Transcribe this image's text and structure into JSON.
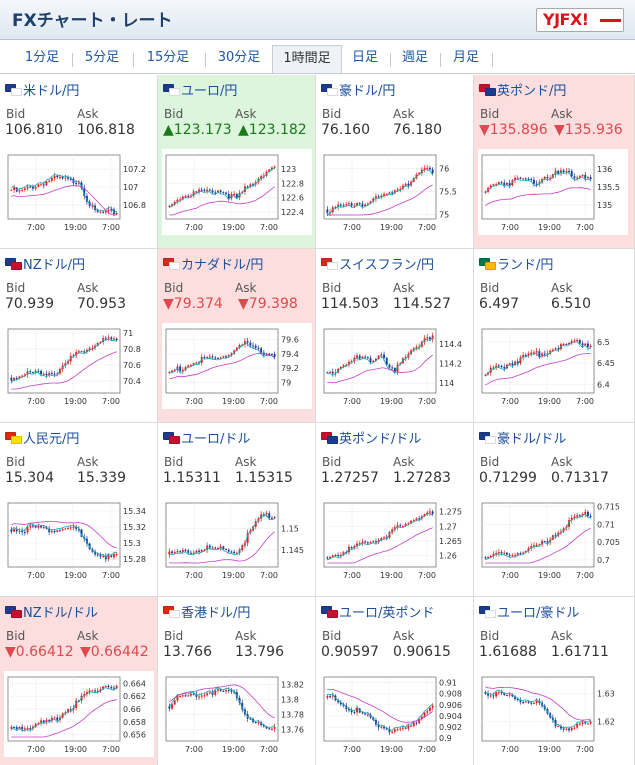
{
  "header": {
    "title": "FXチャート・レート",
    "logo_text": "YJFX!"
  },
  "tabs": [
    {
      "label": "1分足",
      "active": false
    },
    {
      "label": "5分足",
      "active": false
    },
    {
      "label": "15分足",
      "active": false
    },
    {
      "label": "30分足",
      "active": false
    },
    {
      "label": "1時間足",
      "active": true
    },
    {
      "label": "日足",
      "active": false
    },
    {
      "label": "週足",
      "active": false
    },
    {
      "label": "月足",
      "active": false
    }
  ],
  "labels": {
    "bid": "Bid",
    "ask": "Ask"
  },
  "colors": {
    "up_bg": "#dcf5dc",
    "down_bg": "#fcdede",
    "up_text": "#1a7a1a",
    "down_text": "#e0484f",
    "link": "#1b4e9b",
    "candle_up": "#e2231a",
    "candle_down": "#1a3d9c",
    "ma_short": "#1aa6b7",
    "ma_long": "#c43fc4"
  },
  "pairs": [
    {
      "name": "米ドル/円",
      "bid": "106.810",
      "ask": "106.818",
      "change": "none",
      "flags": [
        "#1d3b8c",
        "#ffffff"
      ],
      "chart_data": {
        "type": "candlestick",
        "x_ticks": [
          "7:00",
          "19:00",
          "7:00"
        ],
        "y_ticks": [
          "107.2",
          "107",
          "106.8"
        ],
        "y_range": [
          106.64,
          107.36
        ],
        "shape": [
          0.45,
          0.4,
          0.46,
          0.52,
          0.56,
          0.62,
          0.65,
          0.63,
          0.6,
          0.62,
          0.3,
          0.05,
          0.03,
          0.04,
          0.05
        ],
        "ma_short_offset": 0.03,
        "ma_long_offset": -0.12
      }
    },
    {
      "name": "ユーロ/円",
      "bid": "123.173",
      "ask": "123.182",
      "change": "up",
      "flags": [
        "#1d3b8c",
        "#ffffff"
      ],
      "chart_data": {
        "type": "candlestick",
        "x_ticks": [
          "7:00",
          "19:00",
          "7:00"
        ],
        "y_ticks": [
          "123",
          "122.8",
          "122.6",
          "122.4"
        ],
        "y_range": [
          122.3,
          123.2
        ],
        "shape": [
          0.15,
          0.3,
          0.35,
          0.38,
          0.42,
          0.4,
          0.45,
          0.42,
          0.35,
          0.3,
          0.45,
          0.55,
          0.7,
          0.8,
          0.85
        ],
        "ma_short_offset": -0.03,
        "ma_long_offset": -0.18
      }
    },
    {
      "name": "豪ドル/円",
      "bid": "76.160",
      "ask": "76.180",
      "change": "none",
      "flags": [
        "#1d3b8c",
        "#ffffff"
      ],
      "chart_data": {
        "type": "candlestick",
        "x_ticks": [
          "7:00",
          "19:00",
          "7:00"
        ],
        "y_ticks": [
          "76",
          "75.5",
          "75"
        ],
        "y_range": [
          74.9,
          76.3
        ],
        "shape": [
          0.1,
          0.12,
          0.14,
          0.18,
          0.22,
          0.2,
          0.26,
          0.3,
          0.38,
          0.45,
          0.55,
          0.6,
          0.72,
          0.8,
          0.78
        ],
        "ma_short_offset": -0.03,
        "ma_long_offset": -0.18
      }
    },
    {
      "name": "英ポンド/円",
      "bid": "135.896",
      "ask": "135.936",
      "change": "down",
      "flags": [
        "#c8102e",
        "#1d3b8c"
      ],
      "chart_data": {
        "type": "candlestick",
        "x_ticks": [
          "7:00",
          "19:00",
          "7:00"
        ],
        "y_ticks": [
          "136",
          "135.5",
          "135"
        ],
        "y_range": [
          134.6,
          136.4
        ],
        "shape": [
          0.4,
          0.55,
          0.6,
          0.58,
          0.62,
          0.65,
          0.6,
          0.62,
          0.7,
          0.72,
          0.75,
          0.74,
          0.7,
          0.72,
          0.68
        ],
        "ma_short_offset": -0.03,
        "ma_long_offset": -0.25
      }
    },
    {
      "name": "NZドル/円",
      "bid": "70.939",
      "ask": "70.953",
      "change": "none",
      "flags": [
        "#1d3b8c",
        "#c8102e"
      ],
      "chart_data": {
        "type": "candlestick",
        "x_ticks": [
          "7:00",
          "19:00",
          "7:00"
        ],
        "y_ticks": [
          "71",
          "70.8",
          "70.6",
          "70.4"
        ],
        "y_range": [
          70.25,
          71.05
        ],
        "shape": [
          0.2,
          0.22,
          0.25,
          0.3,
          0.28,
          0.32,
          0.3,
          0.38,
          0.55,
          0.65,
          0.72,
          0.8,
          0.85,
          0.88,
          0.86
        ],
        "ma_short_offset": -0.03,
        "ma_long_offset": -0.18
      }
    },
    {
      "name": "カナダドル/円",
      "bid": "79.374",
      "ask": "79.398",
      "change": "down",
      "flags": [
        "#d52b1e",
        "#ffffff"
      ],
      "chart_data": {
        "type": "candlestick",
        "x_ticks": [
          "7:00",
          "19:00",
          "7:00"
        ],
        "y_ticks": [
          "79.6",
          "79.4",
          "79.2",
          "79"
        ],
        "y_range": [
          78.85,
          79.75
        ],
        "shape": [
          0.3,
          0.35,
          0.4,
          0.45,
          0.5,
          0.55,
          0.52,
          0.58,
          0.62,
          0.75,
          0.8,
          0.72,
          0.68,
          0.64,
          0.62
        ],
        "ma_short_offset": -0.03,
        "ma_long_offset": -0.12
      }
    },
    {
      "name": "スイスフラン/円",
      "bid": "114.503",
      "ask": "114.527",
      "change": "none",
      "flags": [
        "#d52b1e",
        "#ffffff"
      ],
      "chart_data": {
        "type": "candlestick",
        "x_ticks": [
          "7:00",
          "19:00",
          "7:00"
        ],
        "y_ticks": [
          "114.4",
          "114.2",
          "114"
        ],
        "y_range": [
          113.9,
          114.55
        ],
        "shape": [
          0.3,
          0.35,
          0.4,
          0.45,
          0.55,
          0.6,
          0.5,
          0.62,
          0.4,
          0.3,
          0.55,
          0.7,
          0.8,
          0.85,
          0.9
        ],
        "ma_short_offset": -0.03,
        "ma_long_offset": -0.18
      }
    },
    {
      "name": "ランド/円",
      "bid": "6.497",
      "ask": "6.510",
      "change": "none",
      "flags": [
        "#007a4d",
        "#ffb612"
      ],
      "chart_data": {
        "type": "candlestick",
        "x_ticks": [
          "7:00",
          "19:00",
          "7:00"
        ],
        "y_ticks": [
          "6.5",
          "6.45",
          "6.4"
        ],
        "y_range": [
          6.38,
          6.53
        ],
        "shape": [
          0.25,
          0.35,
          0.4,
          0.45,
          0.5,
          0.55,
          0.6,
          0.62,
          0.68,
          0.72,
          0.78,
          0.8,
          0.85,
          0.82,
          0.8
        ],
        "ma_short_offset": -0.03,
        "ma_long_offset": -0.18
      }
    },
    {
      "name": "人民元/円",
      "bid": "15.304",
      "ask": "15.339",
      "change": "none",
      "flags": [
        "#de2910",
        "#ffde00"
      ],
      "chart_data": {
        "type": "candlestick",
        "x_ticks": [
          "7:00",
          "19:00",
          "7:00"
        ],
        "y_ticks": [
          "15.34",
          "15.32",
          "15.3",
          "15.28"
        ],
        "y_range": [
          15.27,
          15.35
        ],
        "shape": [
          0.6,
          0.62,
          0.6,
          0.63,
          0.62,
          0.6,
          0.58,
          0.62,
          0.6,
          0.55,
          0.3,
          0.2,
          0.15,
          0.1,
          0.12
        ],
        "ma_short_offset": 0.03,
        "ma_long_offset": 0.12
      }
    },
    {
      "name": "ユーロ/ドル",
      "bid": "1.15311",
      "ask": "1.15315",
      "change": "none",
      "flags": [
        "#1d3b8c",
        "#c8102e"
      ],
      "chart_data": {
        "type": "candlestick",
        "x_ticks": [
          "7:00",
          "19:00",
          "7:00"
        ],
        "y_ticks": [
          "1.15",
          "1.145"
        ],
        "y_range": [
          1.141,
          1.156
        ],
        "shape": [
          0.15,
          0.18,
          0.2,
          0.22,
          0.24,
          0.25,
          0.26,
          0.25,
          0.22,
          0.2,
          0.4,
          0.6,
          0.8,
          0.85,
          0.83
        ],
        "ma_short_offset": -0.03,
        "ma_long_offset": -0.2
      }
    },
    {
      "name": "英ポンド/ドル",
      "bid": "1.27257",
      "ask": "1.27283",
      "change": "none",
      "flags": [
        "#c8102e",
        "#1d3b8c"
      ],
      "chart_data": {
        "type": "candlestick",
        "x_ticks": [
          "7:00",
          "19:00",
          "7:00"
        ],
        "y_ticks": [
          "1.275",
          "1.27",
          "1.265",
          "1.26"
        ],
        "y_range": [
          1.256,
          1.278
        ],
        "shape": [
          0.1,
          0.15,
          0.2,
          0.25,
          0.3,
          0.35,
          0.4,
          0.45,
          0.5,
          0.6,
          0.65,
          0.75,
          0.82,
          0.88,
          0.85
        ],
        "ma_short_offset": -0.03,
        "ma_long_offset": -0.18
      }
    },
    {
      "name": "豪ドル/ドル",
      "bid": "0.71299",
      "ask": "0.71317",
      "change": "none",
      "flags": [
        "#1d3b8c",
        "#ffffff"
      ],
      "chart_data": {
        "type": "candlestick",
        "x_ticks": [
          "7:00",
          "19:00",
          "7:00"
        ],
        "y_ticks": [
          "0.715",
          "0.71",
          "0.705",
          "0.7"
        ],
        "y_range": [
          0.698,
          0.716
        ],
        "shape": [
          0.1,
          0.12,
          0.14,
          0.15,
          0.18,
          0.2,
          0.25,
          0.3,
          0.4,
          0.5,
          0.6,
          0.7,
          0.8,
          0.85,
          0.88
        ],
        "ma_short_offset": -0.03,
        "ma_long_offset": -0.18
      }
    },
    {
      "name": "NZドル/ドル",
      "bid": "0.66412",
      "ask": "0.66442",
      "change": "down",
      "flags": [
        "#1d3b8c",
        "#c8102e"
      ],
      "chart_data": {
        "type": "candlestick",
        "x_ticks": [
          "7:00",
          "19:00",
          "7:00"
        ],
        "y_ticks": [
          "0.664",
          "0.662",
          "0.66",
          "0.658",
          "0.656"
        ],
        "y_range": [
          0.655,
          0.665
        ],
        "shape": [
          0.15,
          0.18,
          0.2,
          0.22,
          0.25,
          0.28,
          0.35,
          0.45,
          0.55,
          0.65,
          0.75,
          0.85,
          0.9,
          0.92,
          0.9
        ],
        "ma_short_offset": -0.03,
        "ma_long_offset": -0.2
      }
    },
    {
      "name": "香港ドル/円",
      "bid": "13.766",
      "ask": "13.796",
      "change": "none",
      "flags": [
        "#de2910",
        "#ffffff"
      ],
      "chart_data": {
        "type": "candlestick",
        "x_ticks": [
          "7:00",
          "19:00",
          "7:00"
        ],
        "y_ticks": [
          "13.82",
          "13.8",
          "13.78",
          "13.76"
        ],
        "y_range": [
          13.745,
          13.83
        ],
        "shape": [
          0.55,
          0.7,
          0.72,
          0.75,
          0.78,
          0.8,
          0.8,
          0.82,
          0.78,
          0.75,
          0.45,
          0.3,
          0.2,
          0.15,
          0.12
        ],
        "ma_short_offset": 0.03,
        "ma_long_offset": 0.12
      }
    },
    {
      "name": "ユーロ/英ポンド",
      "bid": "0.90597",
      "ask": "0.90615",
      "change": "none",
      "flags": [
        "#1d3b8c",
        "#c8102e"
      ],
      "chart_data": {
        "type": "candlestick",
        "x_ticks": [
          "7:00",
          "19:00",
          "7:00"
        ],
        "y_ticks": [
          "0.91",
          "0.908",
          "0.906",
          "0.904",
          "0.902",
          "0.9"
        ],
        "y_range": [
          0.8995,
          0.911
        ],
        "shape": [
          0.7,
          0.68,
          0.6,
          0.5,
          0.45,
          0.4,
          0.3,
          0.22,
          0.15,
          0.1,
          0.12,
          0.18,
          0.3,
          0.45,
          0.6
        ],
        "ma_short_offset": 0.03,
        "ma_long_offset": 0.12
      }
    },
    {
      "name": "ユーロ/豪ドル",
      "bid": "1.61688",
      "ask": "1.61711",
      "change": "none",
      "flags": [
        "#1d3b8c",
        "#ffffff"
      ],
      "chart_data": {
        "type": "candlestick",
        "x_ticks": [
          "7:00",
          "19:00",
          "7:00"
        ],
        "y_ticks": [
          "1.63",
          "1.62"
        ],
        "y_range": [
          1.613,
          1.636
        ],
        "shape": [
          0.8,
          0.78,
          0.75,
          0.74,
          0.7,
          0.65,
          0.62,
          0.6,
          0.45,
          0.25,
          0.18,
          0.15,
          0.2,
          0.22,
          0.25
        ],
        "ma_short_offset": 0.03,
        "ma_long_offset": 0.12
      }
    }
  ]
}
